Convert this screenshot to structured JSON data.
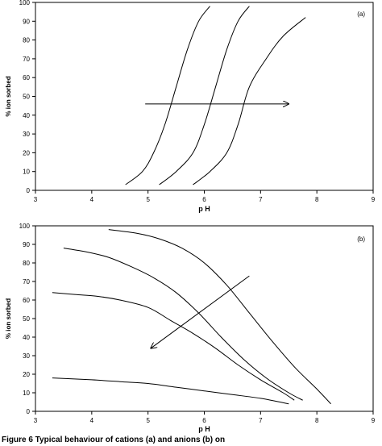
{
  "chart_data": [
    {
      "type": "line",
      "panel_label": "(a)",
      "xlabel": "pH",
      "ylabel": "% ion sorbed",
      "xlim": [
        3,
        9
      ],
      "ylim": [
        0,
        100
      ],
      "xticks": [
        3,
        4,
        5,
        6,
        7,
        8,
        9
      ],
      "yticks": [
        0,
        10,
        20,
        30,
        40,
        50,
        60,
        70,
        80,
        90,
        100
      ],
      "grid": false,
      "legend": "none",
      "series": [
        {
          "x": [
            4.6,
            4.9,
            5.1,
            5.3,
            5.5,
            5.7,
            5.9,
            6.1
          ],
          "y": [
            3,
            10,
            20,
            35,
            55,
            75,
            90,
            98
          ]
        },
        {
          "x": [
            5.2,
            5.5,
            5.8,
            6.0,
            6.2,
            6.4,
            6.6,
            6.8
          ],
          "y": [
            3,
            10,
            20,
            35,
            55,
            75,
            90,
            98
          ]
        },
        {
          "x": [
            5.8,
            6.1,
            6.4,
            6.6,
            6.8,
            7.1,
            7.4,
            7.8
          ],
          "y": [
            3,
            10,
            20,
            35,
            55,
            70,
            82,
            92
          ]
        }
      ],
      "arrow": {
        "from": [
          4.95,
          46
        ],
        "to": [
          7.5,
          46
        ]
      }
    },
    {
      "type": "line",
      "panel_label": "(b)",
      "xlabel": "pH",
      "ylabel": "% ion sorbed",
      "xlim": [
        3,
        9
      ],
      "ylim": [
        0,
        100
      ],
      "xticks": [
        3,
        4,
        5,
        6,
        7,
        8,
        9
      ],
      "yticks": [
        0,
        10,
        20,
        30,
        40,
        50,
        60,
        70,
        80,
        90,
        100
      ],
      "grid": false,
      "legend": "none",
      "series": [
        {
          "x": [
            4.3,
            4.8,
            5.2,
            5.6,
            6.0,
            6.4,
            6.8,
            7.2,
            7.6,
            8.0,
            8.25
          ],
          "y": [
            98,
            96,
            93,
            88,
            80,
            68,
            53,
            38,
            24,
            12,
            4
          ]
        },
        {
          "x": [
            3.5,
            3.9,
            4.3,
            4.7,
            5.1,
            5.5,
            5.9,
            6.3,
            6.7,
            7.1,
            7.5,
            7.75
          ],
          "y": [
            88,
            86,
            83,
            78,
            72,
            64,
            53,
            40,
            28,
            18,
            10,
            6
          ]
        },
        {
          "x": [
            3.3,
            3.7,
            4.1,
            4.5,
            5.0,
            5.4,
            5.8,
            6.2,
            6.6,
            7.0,
            7.4,
            7.6
          ],
          "y": [
            64,
            63,
            62,
            60,
            56,
            49,
            42,
            34,
            25,
            17,
            10,
            6
          ]
        },
        {
          "x": [
            3.3,
            4.0,
            4.5,
            5.0,
            5.5,
            6.0,
            6.5,
            7.0,
            7.5
          ],
          "y": [
            18,
            17,
            16,
            15,
            13,
            11,
            9,
            7,
            4
          ]
        }
      ],
      "arrow": {
        "from": [
          6.8,
          73
        ],
        "to": [
          5.05,
          34
        ]
      }
    }
  ],
  "caption": "Figure 6 Typical behaviour of cations (a) and anions (b) on"
}
